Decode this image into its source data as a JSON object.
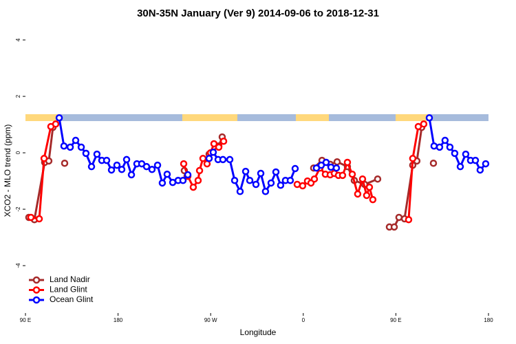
{
  "chart_data": {
    "type": "line",
    "title": "30N-35N January (Ver 9)   2014-09-06 to 2018-12-31",
    "x_label": "Longitude",
    "y_label": "XCO2 - MLO trend (ppm)",
    "xlim": [
      90,
      540
    ],
    "ylim": [
      -5.68,
      4.44
    ],
    "xticks": [
      {
        "value": 90,
        "label": "90 E"
      },
      {
        "value": 180,
        "label": "180"
      },
      {
        "value": 270,
        "label": "90 W"
      },
      {
        "value": 360,
        "label": "0"
      },
      {
        "value": 450,
        "label": "90 E"
      },
      {
        "value": 540,
        "label": "180"
      }
    ],
    "yticks": [
      -4,
      -2,
      0,
      2,
      4
    ],
    "legend": "bottom-left",
    "series": [
      {
        "name": "Land Nadir",
        "color": "#a52a2a",
        "x": [
          93.3,
          98.7,
          108.7,
          112.7,
          116.7,
          null,
          128.1,
          null,
          244.4,
          247.1,
          null,
          268.5,
          277.9,
          281.2,
          null,
          370.1,
          378.2,
          386.2,
          392.9,
          402.9,
          409.6,
          419.6,
          432.3,
          null,
          443.7,
          448.4,
          453,
          458.4,
          466.4,
          470.4,
          475.1,
          null,
          486.5
        ],
        "values": [
          -2.29,
          -2.37,
          -0.34,
          -0.29,
          0.9,
          null,
          -0.37,
          null,
          -0.63,
          -0.83,
          null,
          -0.05,
          0.24,
          0.56,
          null,
          -0.54,
          -0.27,
          -0.41,
          -0.32,
          -0.49,
          -0.98,
          -1.12,
          -0.93,
          null,
          -2.63,
          -2.63,
          -2.29,
          -2.34,
          -0.44,
          -0.29,
          0.9,
          null,
          -0.37
        ]
      },
      {
        "name": "Land Glint",
        "color": "#ff0000",
        "x": [
          95.3,
          103.4,
          108.1,
          114.7,
          119.4,
          null,
          243.8,
          247.8,
          253.1,
          257.8,
          259.2,
          262.5,
          266.5,
          269.9,
          273.2,
          277.9,
          282.6,
          null,
          354.1,
          359.4,
          364.1,
          367.5,
          370.8,
          376.2,
          381.5,
          386.2,
          390.2,
          394.2,
          398.2,
          402.9,
          407.6,
          412.9,
          417.6,
          421.6,
          424.3,
          427.6,
          null,
          462.4,
          466.4,
          471.8,
          477.1
        ],
        "values": [
          -2.29,
          -2.34,
          -0.2,
          0.93,
          1.02,
          null,
          -0.39,
          -0.83,
          -1.22,
          -0.98,
          -0.63,
          -0.2,
          -0.39,
          0,
          0.32,
          0.2,
          0.41,
          null,
          -1.12,
          -1.17,
          -1,
          -1.07,
          -0.93,
          -0.54,
          -0.76,
          -0.78,
          -0.73,
          -0.8,
          -0.8,
          -0.34,
          -0.76,
          -1.46,
          -0.93,
          -1.51,
          -1.22,
          -1.66,
          null,
          -2.37,
          -0.2,
          0.93,
          1.02
        ]
      },
      {
        "name": "Ocean Glint",
        "color": "#0000ff",
        "x": [
          122.8,
          127.4,
          133.5,
          138.8,
          144.2,
          148.8,
          154.2,
          159.5,
          164.2,
          168.9,
          173.6,
          178.9,
          183.6,
          188.3,
          193,
          198.3,
          203,
          207.7,
          213,
          218.4,
          223,
          227.7,
          233.1,
          238.4,
          243.1,
          247.8,
          null,
          268.5,
          272.5,
          277.2,
          281.9,
          288.6,
          293.3,
          298.6,
          304,
          308,
          314,
          318.7,
          323.3,
          328.7,
          333.4,
          338,
          342.7,
          347.4,
          352.1,
          null,
          372.8,
          377.5,
          382.2,
          386.9,
          392.2,
          null,
          482.5,
          487.1,
          492.5,
          497.8,
          502.5,
          507.2,
          512.6,
          517.9,
          522.6,
          527.3,
          531.9,
          537.3
        ],
        "values": [
          1.24,
          0.24,
          0.2,
          0.44,
          0.2,
          -0.02,
          -0.49,
          -0.05,
          -0.27,
          -0.27,
          -0.61,
          -0.44,
          -0.59,
          -0.24,
          -0.78,
          -0.39,
          -0.39,
          -0.49,
          -0.59,
          -0.44,
          -1.07,
          -0.76,
          -1.05,
          -0.98,
          -0.98,
          -0.78,
          null,
          -0.2,
          0.02,
          -0.24,
          -0.24,
          -0.24,
          -0.98,
          -1.37,
          -0.66,
          -0.98,
          -1.12,
          -0.73,
          -1.37,
          -1.07,
          -0.68,
          -1.15,
          -0.98,
          -0.98,
          -0.56,
          null,
          -0.54,
          -0.44,
          -0.34,
          -0.51,
          -0.54,
          null,
          1.24,
          0.24,
          0.2,
          0.44,
          0.2,
          -0.02,
          -0.49,
          -0.05,
          -0.27,
          -0.27,
          -0.61,
          -0.39
        ]
      }
    ]
  }
}
